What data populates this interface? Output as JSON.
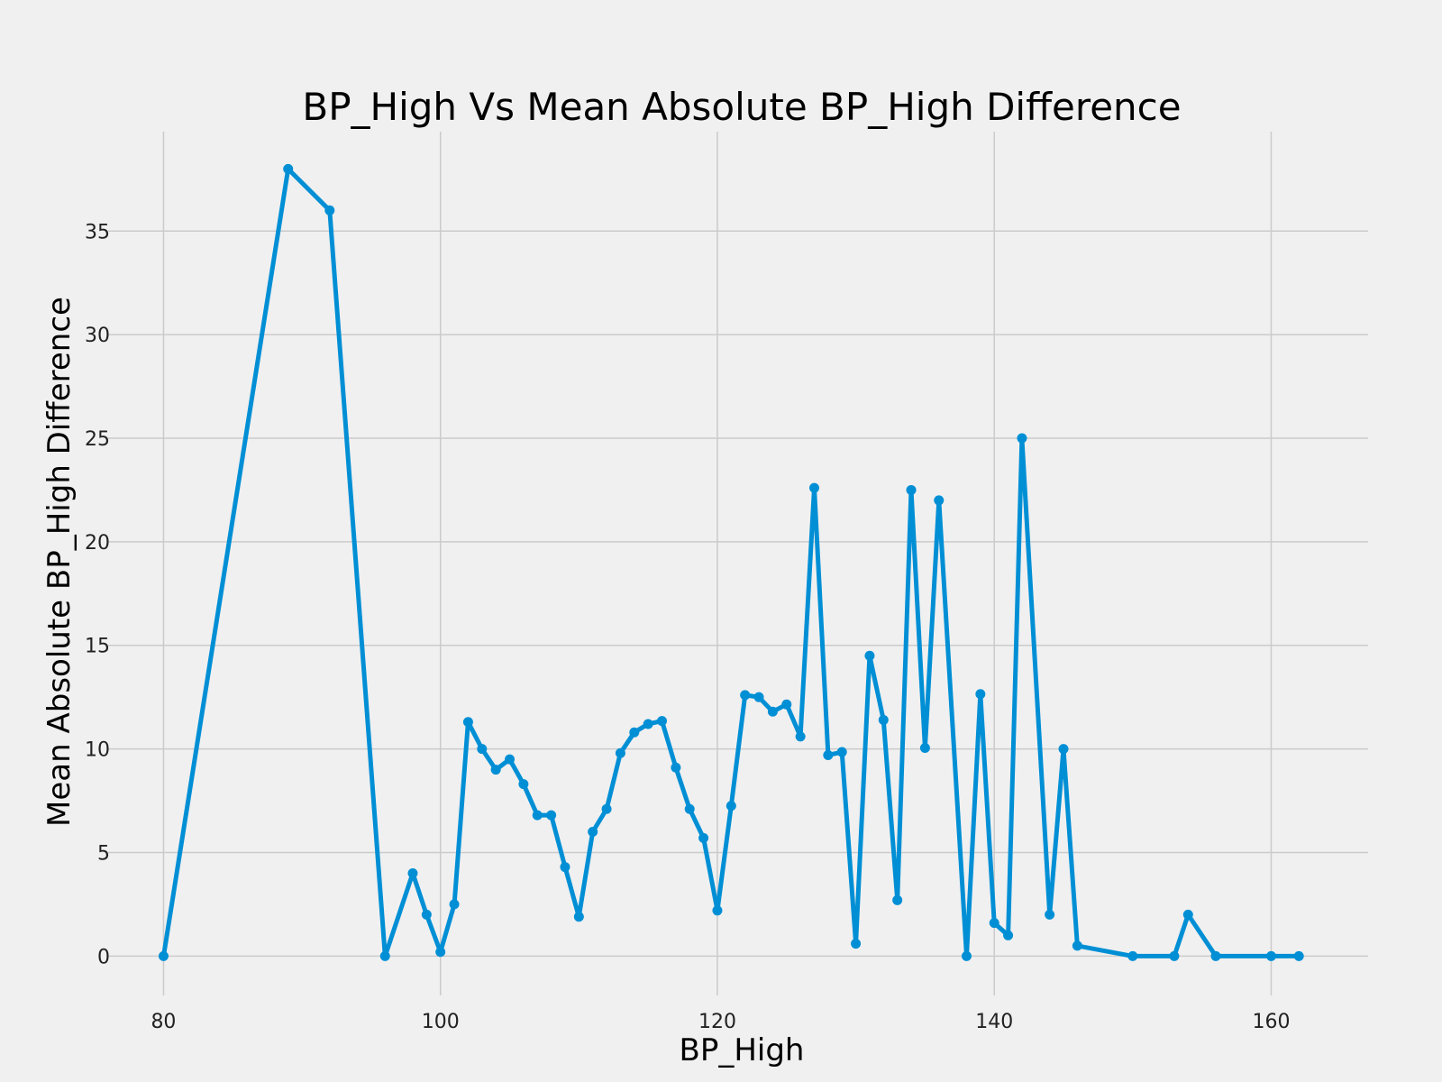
{
  "chart_data": {
    "type": "line",
    "title": "BP_High Vs Mean Absolute BP_High Difference",
    "xlabel": "BP_High",
    "ylabel": "Mean Absolute BP_High Difference",
    "xlim": [
      76,
      167
    ],
    "ylim": [
      -1.9,
      39.8
    ],
    "xticks": [
      80,
      100,
      120,
      140,
      160
    ],
    "yticks": [
      0,
      5,
      10,
      15,
      20,
      25,
      30,
      35
    ],
    "grid": true,
    "series": [
      {
        "color": "#008fd5",
        "x": [
          80,
          89,
          92,
          96,
          98,
          99,
          100,
          101,
          102,
          103,
          104,
          105,
          106,
          107,
          108,
          109,
          110,
          111,
          112,
          113,
          114,
          115,
          116,
          117,
          118,
          119,
          120,
          121,
          122,
          123,
          124,
          125,
          126,
          127,
          128,
          129,
          130,
          131,
          132,
          133,
          134,
          135,
          136,
          138,
          139,
          140,
          141,
          142,
          144,
          145,
          146,
          150,
          153,
          154,
          156,
          160,
          162
        ],
        "y": [
          0,
          38,
          36,
          0,
          4,
          2,
          0.2,
          2.5,
          11.3,
          10,
          9,
          9.5,
          8.3,
          6.8,
          6.8,
          4.3,
          1.9,
          6,
          7.1,
          9.8,
          10.8,
          11.2,
          11.35,
          9.1,
          7.1,
          5.7,
          2.2,
          7.25,
          12.6,
          12.5,
          11.8,
          12.15,
          10.6,
          22.6,
          9.7,
          9.85,
          0.6,
          14.5,
          11.4,
          2.7,
          22.5,
          10.05,
          22,
          0,
          12.65,
          1.6,
          1,
          25,
          2,
          10,
          0.5,
          0,
          0,
          2,
          0,
          0,
          0
        ]
      }
    ]
  }
}
